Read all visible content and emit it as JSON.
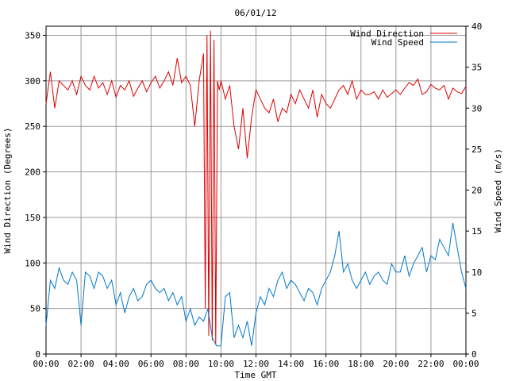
{
  "chart_data": {
    "type": "line",
    "title": "06/01/12",
    "xlabel": "Time GMT",
    "ylabel_left": "Wind Direction (Degrees)",
    "ylabel_right": "Wind Speed (m/s)",
    "x_tick_labels": [
      "00:00",
      "02:00",
      "04:00",
      "06:00",
      "08:00",
      "10:00",
      "12:00",
      "14:00",
      "16:00",
      "18:00",
      "20:00",
      "22:00",
      "00:00"
    ],
    "xlim_hours": [
      0,
      24
    ],
    "ylim_left": [
      0,
      360
    ],
    "y_ticks_left": [
      0,
      50,
      100,
      150,
      200,
      250,
      300,
      350
    ],
    "ylim_right": [
      0,
      40
    ],
    "y_ticks_right": [
      0,
      5,
      10,
      15,
      20,
      25,
      30,
      35,
      40
    ],
    "grid": true,
    "legend_position": "top-right",
    "colors": {
      "direction": "#dd0000",
      "speed": "#0077cc",
      "grid": "#999999"
    },
    "series": [
      {
        "name": "Wind Direction",
        "axis": "left",
        "x_hours": [
          0,
          0.25,
          0.5,
          0.75,
          1,
          1.25,
          1.5,
          1.75,
          2,
          2.25,
          2.5,
          2.75,
          3,
          3.25,
          3.5,
          3.75,
          4,
          4.25,
          4.5,
          4.75,
          5,
          5.25,
          5.5,
          5.75,
          6,
          6.25,
          6.5,
          6.75,
          7,
          7.25,
          7.5,
          7.75,
          8,
          8.25,
          8.5,
          8.75,
          9,
          9.1,
          9.2,
          9.3,
          9.4,
          9.5,
          9.6,
          9.7,
          9.8,
          9.9,
          10,
          10.25,
          10.5,
          10.75,
          11,
          11.25,
          11.5,
          11.75,
          12,
          12.25,
          12.5,
          12.75,
          13,
          13.25,
          13.5,
          13.75,
          14,
          14.25,
          14.5,
          14.75,
          15,
          15.25,
          15.5,
          15.75,
          16,
          16.25,
          16.5,
          16.75,
          17,
          17.25,
          17.5,
          17.75,
          18,
          18.25,
          18.5,
          18.75,
          19,
          19.25,
          19.5,
          19.75,
          20,
          20.25,
          20.5,
          20.75,
          21,
          21.25,
          21.5,
          21.75,
          22,
          22.25,
          22.5,
          22.75,
          23,
          23.25,
          23.5,
          23.75,
          24
        ],
        "values": [
          275,
          310,
          270,
          300,
          295,
          290,
          300,
          285,
          305,
          295,
          290,
          305,
          292,
          298,
          285,
          300,
          282,
          295,
          290,
          300,
          283,
          292,
          300,
          288,
          298,
          305,
          292,
          300,
          310,
          295,
          325,
          298,
          305,
          295,
          250,
          300,
          330,
          50,
          350,
          20,
          355,
          15,
          345,
          10,
          300,
          290,
          300,
          280,
          295,
          250,
          225,
          270,
          215,
          260,
          290,
          280,
          270,
          265,
          280,
          255,
          270,
          265,
          285,
          275,
          290,
          280,
          270,
          290,
          260,
          285,
          275,
          270,
          280,
          290,
          295,
          285,
          300,
          280,
          290,
          285,
          285,
          288,
          280,
          290,
          282,
          286,
          290,
          285,
          292,
          298,
          295,
          302,
          285,
          288,
          296,
          292,
          290,
          295,
          280,
          292,
          288,
          286,
          294
        ],
        "color": "#dd0000"
      },
      {
        "name": "Wind Speed",
        "axis": "right",
        "x_hours": [
          0,
          0.25,
          0.5,
          0.75,
          1,
          1.25,
          1.5,
          1.75,
          2,
          2.25,
          2.5,
          2.75,
          3,
          3.25,
          3.5,
          3.75,
          4,
          4.25,
          4.5,
          4.75,
          5,
          5.25,
          5.5,
          5.75,
          6,
          6.25,
          6.5,
          6.75,
          7,
          7.25,
          7.5,
          7.75,
          8,
          8.25,
          8.5,
          8.75,
          9,
          9.25,
          9.5,
          9.75,
          10,
          10.25,
          10.5,
          10.75,
          11,
          11.25,
          11.5,
          11.75,
          12,
          12.25,
          12.5,
          12.75,
          13,
          13.25,
          13.5,
          13.75,
          14,
          14.25,
          14.5,
          14.75,
          15,
          15.25,
          15.5,
          15.75,
          16,
          16.25,
          16.5,
          16.75,
          17,
          17.25,
          17.5,
          17.75,
          18,
          18.25,
          18.5,
          18.75,
          19,
          19.25,
          19.5,
          19.75,
          20,
          20.25,
          20.5,
          20.75,
          21,
          21.25,
          21.5,
          21.75,
          22,
          22.25,
          22.5,
          22.75,
          23,
          23.25,
          23.5,
          23.75,
          24
        ],
        "values": [
          3.5,
          9,
          8,
          10.5,
          9,
          8.5,
          10,
          9,
          3.5,
          10,
          9.5,
          8,
          10,
          9.5,
          8,
          9,
          6,
          7.5,
          5,
          7,
          8,
          6.5,
          7,
          8.5,
          9,
          8,
          7.5,
          8,
          6.5,
          7.5,
          6,
          7,
          4,
          5.5,
          3.5,
          4.5,
          4,
          5.5,
          2,
          1,
          1,
          7,
          7.5,
          2,
          3.5,
          2,
          4,
          1,
          5,
          7,
          6,
          8,
          7,
          9,
          10,
          8,
          9,
          8.5,
          7.5,
          6.5,
          8,
          7.5,
          6,
          8,
          9,
          10,
          12,
          15,
          10,
          11,
          9,
          8,
          9,
          10,
          8.5,
          9.5,
          10,
          9,
          8.5,
          11,
          10,
          10,
          12,
          9.5,
          11,
          12,
          13,
          10,
          12,
          11.5,
          14,
          13,
          12,
          16,
          13,
          10,
          8
        ]
      }
    ]
  }
}
